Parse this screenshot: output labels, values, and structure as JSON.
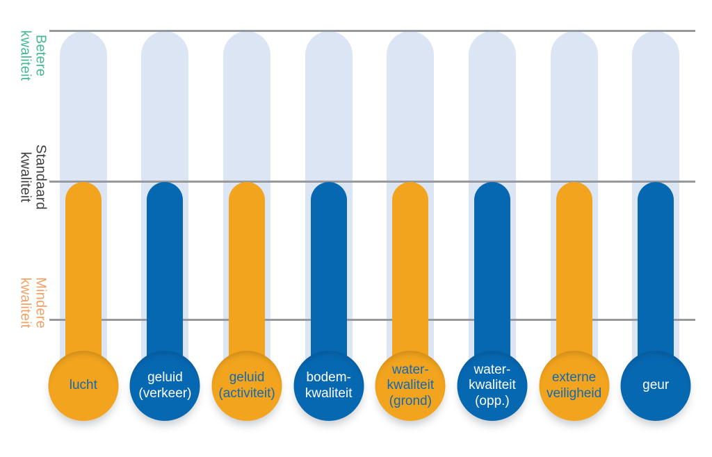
{
  "axis": {
    "labels": [
      {
        "id": "betere",
        "text": "Betere\nkwaliteit",
        "color": "#45BA92"
      },
      {
        "id": "standaard",
        "text": "Standaard\nkwaliteit",
        "color": "#414042"
      },
      {
        "id": "mindere",
        "text": "Mindere\nkwaliteit",
        "color": "#F1A165"
      }
    ]
  },
  "gridlines": {
    "color": "#97989B",
    "count": 3
  },
  "chart_data": {
    "type": "bar",
    "subtype": "thermometer",
    "orientation": "vertical",
    "categories": [
      "lucht",
      "geluid (verkeer)",
      "geluid (activiteit)",
      "bodem-kwaliteit",
      "water-kwaliteit (grond)",
      "water-kwaliteit (opp.)",
      "externe veiligheid",
      "geur"
    ],
    "values": [
      "Standaard kwaliteit",
      "Standaard kwaliteit",
      "Standaard kwaliteit",
      "Standaard kwaliteit",
      "Standaard kwaliteit",
      "Standaard kwaliteit",
      "Standaard kwaliteit",
      "Standaard kwaliteit"
    ],
    "value_scale": [
      "Mindere kwaliteit",
      "Standaard kwaliteit",
      "Betere kwaliteit"
    ],
    "track_color": "#DCE5F4",
    "grid": "3 horizontal reference lines (Betere / Standaard / Mindere kwaliteit)",
    "legend_position": "none",
    "title": "",
    "items": [
      {
        "label": "lucht",
        "display": "lucht",
        "fill_color": "#F2A41E",
        "text_color": "#1368AE",
        "level": "Standaard kwaliteit"
      },
      {
        "label": "geluid (verkeer)",
        "display": "geluid\n(verkeer)",
        "fill_color": "#0768B2",
        "text_color": "#FFFFFF",
        "level": "Standaard kwaliteit"
      },
      {
        "label": "geluid (activiteit)",
        "display": "geluid\n(activiteit)",
        "fill_color": "#F2A41E",
        "text_color": "#1368AE",
        "level": "Standaard kwaliteit"
      },
      {
        "label": "bodem-kwaliteit",
        "display": "bodem-\nkwaliteit",
        "fill_color": "#0768B2",
        "text_color": "#FFFFFF",
        "level": "Standaard kwaliteit"
      },
      {
        "label": "water-kwaliteit (grond)",
        "display": "water-\nkwaliteit\n(grond)",
        "fill_color": "#F2A41E",
        "text_color": "#1368AE",
        "level": "Standaard kwaliteit"
      },
      {
        "label": "water-kwaliteit (opp.)",
        "display": "water-\nkwaliteit\n(opp.)",
        "fill_color": "#0768B2",
        "text_color": "#FFFFFF",
        "level": "Standaard kwaliteit"
      },
      {
        "label": "externe veiligheid",
        "display": "externe\nveiligheid",
        "fill_color": "#F2A41E",
        "text_color": "#1368AE",
        "level": "Standaard kwaliteit"
      },
      {
        "label": "geur",
        "display": "geur",
        "fill_color": "#0768B2",
        "text_color": "#FFFFFF",
        "level": "Standaard kwaliteit"
      }
    ]
  }
}
